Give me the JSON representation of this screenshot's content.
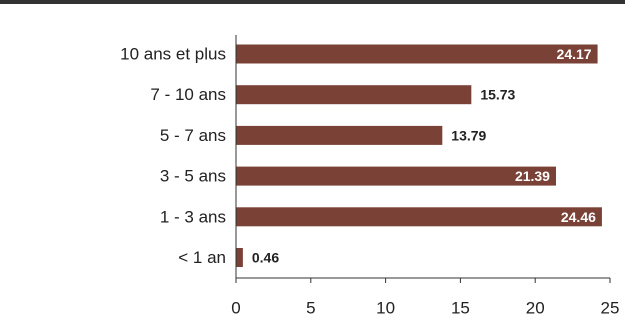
{
  "chart_data": {
    "type": "bar",
    "orientation": "horizontal",
    "categories": [
      "10 ans et plus",
      "7 - 10 ans",
      "5 - 7 ans",
      "3 - 5 ans",
      "1 - 3 ans",
      "< 1 an"
    ],
    "values": [
      24.17,
      15.73,
      13.79,
      21.39,
      24.46,
      0.46
    ],
    "value_labels": [
      "24.17",
      "15.73",
      "13.79",
      "21.39",
      "24.46",
      "0.46"
    ],
    "xlim": [
      0,
      25
    ],
    "xticks": [
      0,
      5,
      10,
      15,
      20,
      25
    ],
    "xtick_labels": [
      "0",
      "5",
      "10",
      "15",
      "20",
      "25"
    ],
    "title": "",
    "xlabel": "",
    "ylabel": "",
    "grid": false,
    "legend": "none"
  },
  "colors": {
    "bar": "#7a4136",
    "top_rule": "#333333",
    "axis": "#333333",
    "label_inside": "#ffffff",
    "label_outside": "#222222"
  }
}
